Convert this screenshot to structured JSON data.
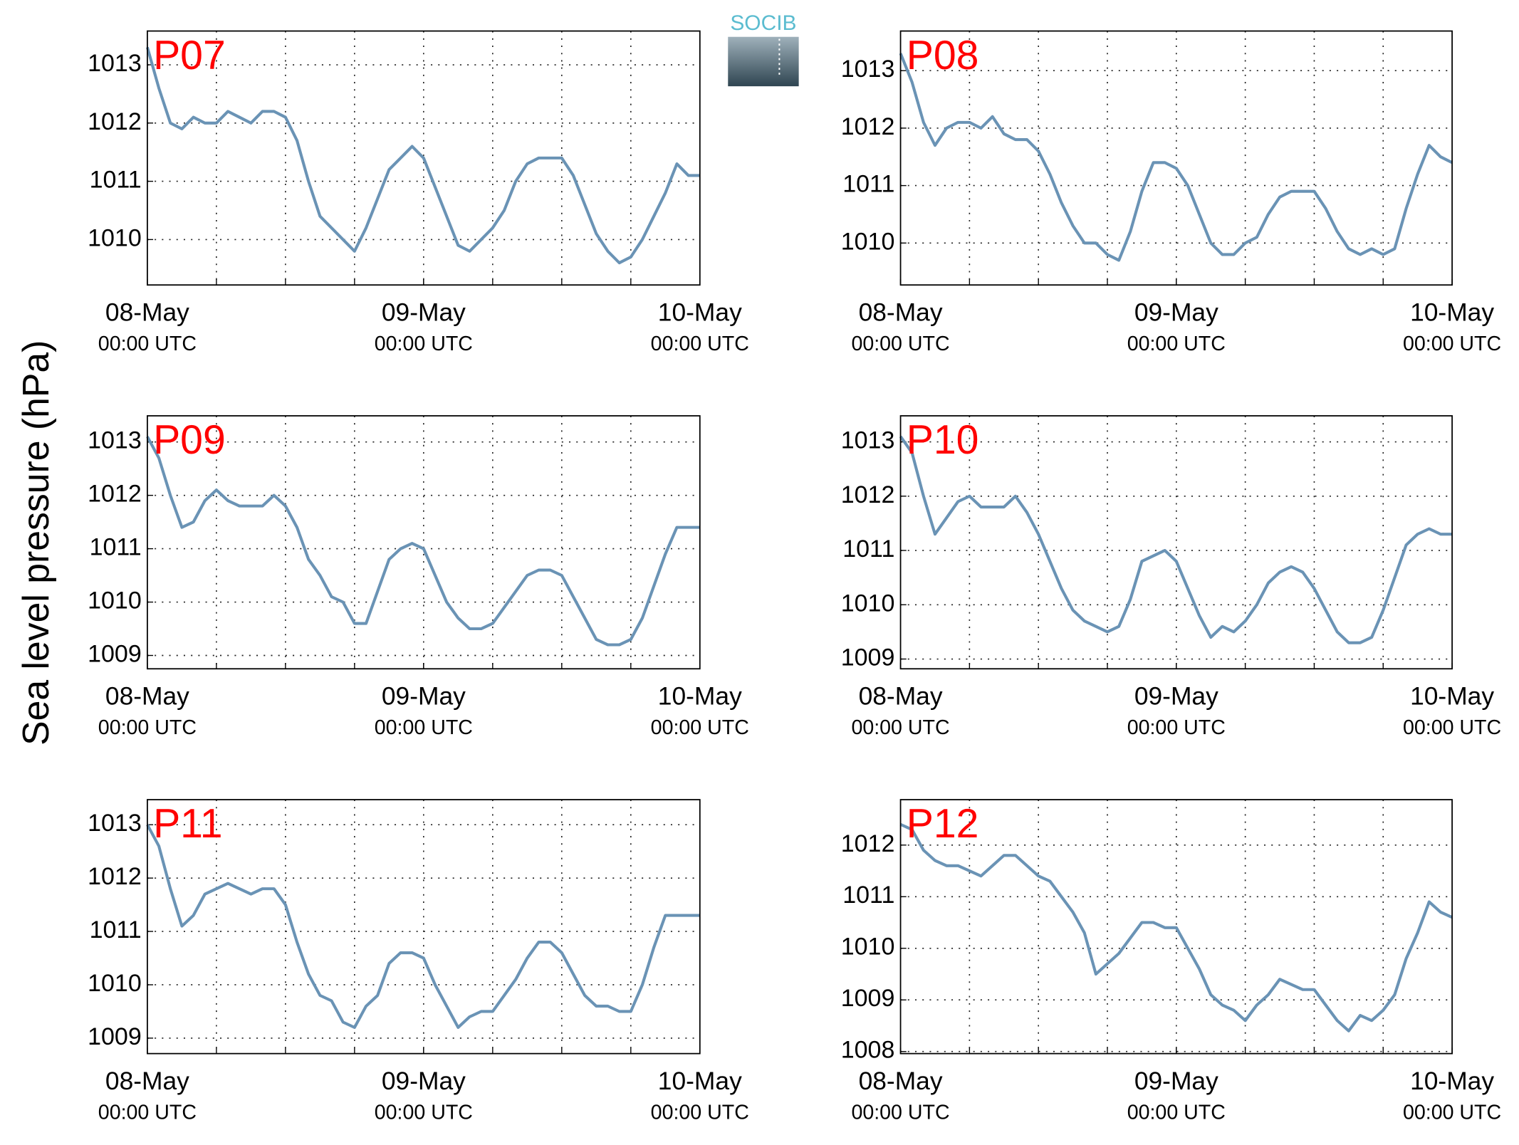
{
  "y_label": "Sea level pressure (hPa)",
  "logo": "SOCIB",
  "chart_data": [
    {
      "type": "line",
      "title": "P07",
      "color": "#6a93b5",
      "grid": true,
      "xlim": [
        0,
        48
      ],
      "ylim": [
        1009.22,
        1013.58
      ],
      "yticks": [
        1010,
        1011,
        1012,
        1013
      ],
      "xticks": [
        {
          "value": 0,
          "label": "08-May"
        },
        {
          "value": 24,
          "label": "09-May"
        },
        {
          "value": 48,
          "label": "10-May"
        }
      ],
      "xtick_sublabels": [
        "00:00 UTC",
        "00:00 UTC",
        "00:00 UTC"
      ],
      "xgrid": [
        6,
        12,
        18,
        24,
        30,
        36,
        42
      ],
      "x": [
        0,
        1,
        2,
        3,
        4,
        5,
        6,
        7,
        8,
        9,
        10,
        11,
        12,
        13,
        14,
        15,
        16,
        17,
        18,
        19,
        20,
        21,
        22,
        23,
        24,
        25,
        26,
        27,
        28,
        29,
        30,
        31,
        32,
        33,
        34,
        35,
        36,
        37,
        38,
        39,
        40,
        41,
        42,
        43,
        44,
        45,
        46,
        47,
        48
      ],
      "values": [
        1013.3,
        1012.6,
        1012.0,
        1011.9,
        1012.1,
        1012.0,
        1012.0,
        1012.2,
        1012.1,
        1012.0,
        1012.2,
        1012.2,
        1012.1,
        1011.7,
        1011.0,
        1010.4,
        1010.2,
        1010.0,
        1009.8,
        1010.2,
        1010.7,
        1011.2,
        1011.4,
        1011.6,
        1011.4,
        1010.9,
        1010.4,
        1009.9,
        1009.8,
        1010.0,
        1010.2,
        1010.5,
        1011.0,
        1011.3,
        1011.4,
        1011.4,
        1011.4,
        1011.1,
        1010.6,
        1010.1,
        1009.8,
        1009.6,
        1009.7,
        1010.0,
        1010.4,
        1010.8,
        1011.3,
        1011.1,
        1011.1
      ]
    },
    {
      "type": "line",
      "title": "P08",
      "color": "#6a93b5",
      "grid": true,
      "xlim": [
        0,
        48
      ],
      "ylim": [
        1009.27,
        1013.69
      ],
      "yticks": [
        1010,
        1011,
        1012,
        1013
      ],
      "xticks": [
        {
          "value": 0,
          "label": "08-May"
        },
        {
          "value": 24,
          "label": "09-May"
        },
        {
          "value": 48,
          "label": "10-May"
        }
      ],
      "xtick_sublabels": [
        "00:00 UTC",
        "00:00 UTC",
        "00:00 UTC"
      ],
      "xgrid": [
        6,
        12,
        18,
        24,
        30,
        36,
        42
      ],
      "x": [
        0,
        1,
        2,
        3,
        4,
        5,
        6,
        7,
        8,
        9,
        10,
        11,
        12,
        13,
        14,
        15,
        16,
        17,
        18,
        19,
        20,
        21,
        22,
        23,
        24,
        25,
        26,
        27,
        28,
        29,
        30,
        31,
        32,
        33,
        34,
        35,
        36,
        37,
        38,
        39,
        40,
        41,
        42,
        43,
        44,
        45,
        46,
        47,
        48
      ],
      "values": [
        1013.3,
        1012.8,
        1012.1,
        1011.7,
        1012.0,
        1012.1,
        1012.1,
        1012.0,
        1012.2,
        1011.9,
        1011.8,
        1011.8,
        1011.6,
        1011.2,
        1010.7,
        1010.3,
        1010.0,
        1010.0,
        1009.8,
        1009.7,
        1010.2,
        1010.9,
        1011.4,
        1011.4,
        1011.3,
        1011.0,
        1010.5,
        1010.0,
        1009.8,
        1009.8,
        1010.0,
        1010.1,
        1010.5,
        1010.8,
        1010.9,
        1010.9,
        1010.9,
        1010.6,
        1010.2,
        1009.9,
        1009.8,
        1009.9,
        1009.8,
        1009.9,
        1010.6,
        1011.2,
        1011.7,
        1011.5,
        1011.4
      ]
    },
    {
      "type": "line",
      "title": "P09",
      "color": "#6a93b5",
      "grid": true,
      "xlim": [
        0,
        48
      ],
      "ylim": [
        1008.75,
        1013.49
      ],
      "yticks": [
        1009,
        1010,
        1011,
        1012,
        1013
      ],
      "xticks": [
        {
          "value": 0,
          "label": "08-May"
        },
        {
          "value": 24,
          "label": "09-May"
        },
        {
          "value": 48,
          "label": "10-May"
        }
      ],
      "xtick_sublabels": [
        "00:00 UTC",
        "00:00 UTC",
        "00:00 UTC"
      ],
      "xgrid": [
        6,
        12,
        18,
        24,
        30,
        36,
        42
      ],
      "x": [
        0,
        1,
        2,
        3,
        4,
        5,
        6,
        7,
        8,
        9,
        10,
        11,
        12,
        13,
        14,
        15,
        16,
        17,
        18,
        19,
        20,
        21,
        22,
        23,
        24,
        25,
        26,
        27,
        28,
        29,
        30,
        31,
        32,
        33,
        34,
        35,
        36,
        37,
        38,
        39,
        40,
        41,
        42,
        43,
        44,
        45,
        46,
        47,
        48
      ],
      "values": [
        1013.1,
        1012.7,
        1012.0,
        1011.4,
        1011.5,
        1011.9,
        1012.1,
        1011.9,
        1011.8,
        1011.8,
        1011.8,
        1012.0,
        1011.8,
        1011.4,
        1010.8,
        1010.5,
        1010.1,
        1010.0,
        1009.6,
        1009.6,
        1010.2,
        1010.8,
        1011.0,
        1011.1,
        1011.0,
        1010.5,
        1010.0,
        1009.7,
        1009.5,
        1009.5,
        1009.6,
        1009.9,
        1010.2,
        1010.5,
        1010.6,
        1010.6,
        1010.5,
        1010.1,
        1009.7,
        1009.3,
        1009.2,
        1009.2,
        1009.3,
        1009.7,
        1010.3,
        1010.9,
        1011.4,
        1011.4,
        1011.4
      ]
    },
    {
      "type": "line",
      "title": "P10",
      "color": "#6a93b5",
      "grid": true,
      "xlim": [
        0,
        48
      ],
      "ylim": [
        1008.82,
        1013.48
      ],
      "yticks": [
        1009,
        1010,
        1011,
        1012,
        1013
      ],
      "xticks": [
        {
          "value": 0,
          "label": "08-May"
        },
        {
          "value": 24,
          "label": "09-May"
        },
        {
          "value": 48,
          "label": "10-May"
        }
      ],
      "xtick_sublabels": [
        "00:00 UTC",
        "00:00 UTC",
        "00:00 UTC"
      ],
      "xgrid": [
        6,
        12,
        18,
        24,
        30,
        36,
        42
      ],
      "x": [
        0,
        1,
        2,
        3,
        4,
        5,
        6,
        7,
        8,
        9,
        10,
        11,
        12,
        13,
        14,
        15,
        16,
        17,
        18,
        19,
        20,
        21,
        22,
        23,
        24,
        25,
        26,
        27,
        28,
        29,
        30,
        31,
        32,
        33,
        34,
        35,
        36,
        37,
        38,
        39,
        40,
        41,
        42,
        43,
        44,
        45,
        46,
        47,
        48
      ],
      "values": [
        1013.1,
        1012.8,
        1012.0,
        1011.3,
        1011.6,
        1011.9,
        1012.0,
        1011.8,
        1011.8,
        1011.8,
        1012.0,
        1011.7,
        1011.3,
        1010.8,
        1010.3,
        1009.9,
        1009.7,
        1009.6,
        1009.5,
        1009.6,
        1010.1,
        1010.8,
        1010.9,
        1011.0,
        1010.8,
        1010.3,
        1009.8,
        1009.4,
        1009.6,
        1009.5,
        1009.7,
        1010.0,
        1010.4,
        1010.6,
        1010.7,
        1010.6,
        1010.3,
        1009.9,
        1009.5,
        1009.3,
        1009.3,
        1009.4,
        1009.9,
        1010.5,
        1011.1,
        1011.3,
        1011.4,
        1011.3,
        1011.3
      ]
    },
    {
      "type": "line",
      "title": "P11",
      "color": "#6a93b5",
      "grid": true,
      "xlim": [
        0,
        48
      ],
      "ylim": [
        1008.71,
        1013.47
      ],
      "yticks": [
        1009,
        1010,
        1011,
        1012,
        1013
      ],
      "xticks": [
        {
          "value": 0,
          "label": "08-May"
        },
        {
          "value": 24,
          "label": "09-May"
        },
        {
          "value": 48,
          "label": "10-May"
        }
      ],
      "xtick_sublabels": [
        "00:00 UTC",
        "00:00 UTC",
        "00:00 UTC"
      ],
      "xgrid": [
        6,
        12,
        18,
        24,
        30,
        36,
        42
      ],
      "x": [
        0,
        1,
        2,
        3,
        4,
        5,
        6,
        7,
        8,
        9,
        10,
        11,
        12,
        13,
        14,
        15,
        16,
        17,
        18,
        19,
        20,
        21,
        22,
        23,
        24,
        25,
        26,
        27,
        28,
        29,
        30,
        31,
        32,
        33,
        34,
        35,
        36,
        37,
        38,
        39,
        40,
        41,
        42,
        43,
        44,
        45,
        46,
        47,
        48
      ],
      "values": [
        1013.0,
        1012.6,
        1011.8,
        1011.1,
        1011.3,
        1011.7,
        1011.8,
        1011.9,
        1011.8,
        1011.7,
        1011.8,
        1011.8,
        1011.5,
        1010.8,
        1010.2,
        1009.8,
        1009.7,
        1009.3,
        1009.2,
        1009.6,
        1009.8,
        1010.4,
        1010.6,
        1010.6,
        1010.5,
        1010.0,
        1009.6,
        1009.2,
        1009.4,
        1009.5,
        1009.5,
        1009.8,
        1010.1,
        1010.5,
        1010.8,
        1010.8,
        1010.6,
        1010.2,
        1009.8,
        1009.6,
        1009.6,
        1009.5,
        1009.5,
        1010.0,
        1010.7,
        1011.3,
        1011.3,
        1011.3,
        1011.3
      ]
    },
    {
      "type": "line",
      "title": "P12",
      "color": "#6a93b5",
      "grid": true,
      "xlim": [
        0,
        48
      ],
      "ylim": [
        1007.96,
        1012.88
      ],
      "yticks": [
        1008,
        1009,
        1010,
        1011,
        1012
      ],
      "xticks": [
        {
          "value": 0,
          "label": "08-May"
        },
        {
          "value": 24,
          "label": "09-May"
        },
        {
          "value": 48,
          "label": "10-May"
        }
      ],
      "xtick_sublabels": [
        "00:00 UTC",
        "00:00 UTC",
        "00:00 UTC"
      ],
      "xgrid": [
        6,
        12,
        18,
        24,
        30,
        36,
        42
      ],
      "x": [
        0,
        1,
        2,
        3,
        4,
        5,
        6,
        7,
        8,
        9,
        10,
        11,
        12,
        13,
        14,
        15,
        16,
        17,
        18,
        19,
        20,
        21,
        22,
        23,
        24,
        25,
        26,
        27,
        28,
        29,
        30,
        31,
        32,
        33,
        34,
        35,
        36,
        37,
        38,
        39,
        40,
        41,
        42,
        43,
        44,
        45,
        46,
        47,
        48
      ],
      "values": [
        1012.4,
        1012.3,
        1011.9,
        1011.7,
        1011.6,
        1011.6,
        1011.5,
        1011.4,
        1011.6,
        1011.8,
        1011.8,
        1011.6,
        1011.4,
        1011.3,
        1011.0,
        1010.7,
        1010.3,
        1009.5,
        1009.7,
        1009.9,
        1010.2,
        1010.5,
        1010.5,
        1010.4,
        1010.4,
        1010.0,
        1009.6,
        1009.1,
        1008.9,
        1008.8,
        1008.6,
        1008.9,
        1009.1,
        1009.4,
        1009.3,
        1009.2,
        1009.2,
        1008.9,
        1008.6,
        1008.4,
        1008.7,
        1008.6,
        1008.8,
        1009.1,
        1009.8,
        1010.3,
        1010.9,
        1010.7,
        1010.6
      ]
    }
  ]
}
